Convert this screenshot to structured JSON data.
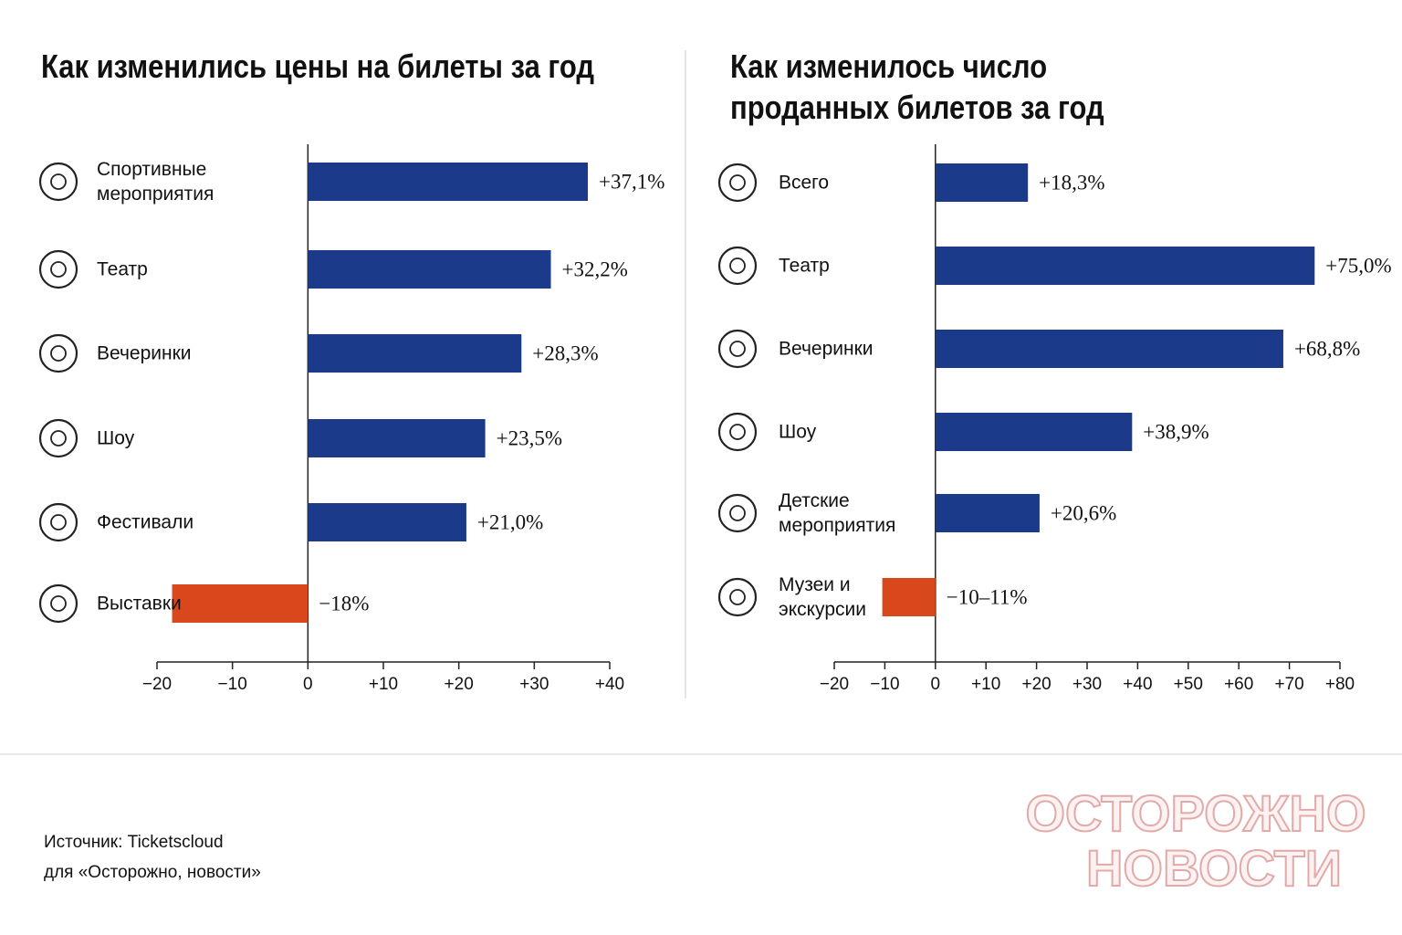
{
  "chart_data": [
    {
      "type": "bar",
      "orientation": "horizontal",
      "title": "Как изменились цены на билеты за год",
      "categories": [
        "Спортивные мероприятия",
        "Театр",
        "Вечеринки",
        "Шоу",
        "Фестивали",
        "Выставки"
      ],
      "values": [
        37.1,
        32.2,
        28.3,
        23.5,
        21.0,
        -18
      ],
      "value_labels": [
        "+37,1%",
        "+32,2%",
        "+28,3%",
        "+23,5%",
        "+21,0%",
        "−18%"
      ],
      "colors": [
        "#1b3a8a",
        "#1b3a8a",
        "#1b3a8a",
        "#1b3a8a",
        "#1b3a8a",
        "#d9481c"
      ],
      "xlim": [
        -20,
        40
      ],
      "xticks": [
        {
          "value": -20,
          "label": "−20"
        },
        {
          "value": -10,
          "label": "−10"
        },
        0,
        {
          "value": 10,
          "label": "+10"
        },
        {
          "value": 20,
          "label": "+20"
        },
        {
          "value": 30,
          "label": "+30"
        },
        {
          "value": 40,
          "label": "+40"
        }
      ]
    },
    {
      "type": "bar",
      "orientation": "horizontal",
      "title": "Как изменилось число проданных билетов за год",
      "categories": [
        "Всего",
        "Театр",
        "Вечеринки",
        "Шоу",
        "Детские мероприятия",
        "Музеи и экскурсии"
      ],
      "values": [
        18.3,
        75.0,
        68.8,
        38.9,
        20.6,
        -10.5
      ],
      "value_labels": [
        "+18,3%",
        "+75,0%",
        "+68,8%",
        "+38,9%",
        "+20,6%",
        "−10–11%"
      ],
      "colors": [
        "#1b3a8a",
        "#1b3a8a",
        "#1b3a8a",
        "#1b3a8a",
        "#1b3a8a",
        "#d9481c"
      ],
      "xlim": [
        -20,
        80
      ],
      "xticks": [
        {
          "value": -20,
          "label": "−20"
        },
        {
          "value": -10,
          "label": "−10"
        },
        0,
        {
          "value": 10,
          "label": "+10"
        },
        {
          "value": 20,
          "label": "+20"
        },
        {
          "value": 30,
          "label": "+30"
        },
        {
          "value": 40,
          "label": "+40"
        },
        {
          "value": 50,
          "label": "+50"
        },
        {
          "value": 60,
          "label": "+60"
        },
        {
          "value": 70,
          "label": "+70"
        },
        {
          "value": 80,
          "label": "+80"
        }
      ]
    }
  ],
  "source": [
    "Источник: Ticketscloud",
    "для «Осторожно, новости»"
  ],
  "logo": [
    "ОСТОРОЖНО",
    "НОВОСТИ"
  ]
}
